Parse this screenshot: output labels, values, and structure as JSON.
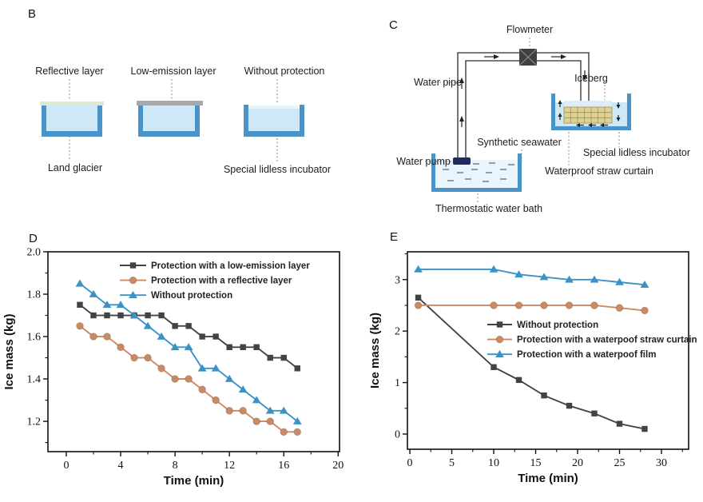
{
  "figure": {
    "background": "#ffffff",
    "colors": {
      "tub_border": "#4a93c8",
      "tub_water": "#cfe8f7",
      "water_surface": "#e7f4fb",
      "bath_water": "#e9f4fc",
      "reflective_strip": "#dfe9ce",
      "low_emission_strip": "#a9a9a9",
      "iceberg_strip": "#dcedf8",
      "straw_fill": "#ded196",
      "straw_line": "#a29253",
      "pump": "#1f2a60",
      "pipe": "#2b2b2b",
      "flowmeter_body": "#3f3f3f",
      "flowmeter_cross": "#8a8a8a",
      "series_gray": "#434343",
      "series_orange": "#c98a64",
      "series_blue": "#3a93c4"
    },
    "panel_b": {
      "letter": "B",
      "labels": {
        "reflective_layer": "Reflective layer",
        "low_emission_layer": "Low-emission layer",
        "without_protection": "Without protection",
        "land_glacier": "Land glacier",
        "special_lidless_incubator": "Special lidless incubator"
      }
    },
    "panel_c": {
      "letter": "C",
      "labels": {
        "flowmeter": "Flowmeter",
        "water_pipe": "Water pipe",
        "iceberg": "Iceberg",
        "water_pump": "Water pump",
        "synthetic_seawater": "Synthetic seawater",
        "special_lidless_incubator": "Special lidless incubator",
        "waterproof_straw_curtain": "Waterproof straw curtain",
        "thermostatic_water_bath": "Thermostatic water bath"
      }
    }
  },
  "chart_data": [
    {
      "type": "line",
      "panel_letter": "D",
      "title": "",
      "xlabel": "Time (min)",
      "ylabel": "Ice mass (kg)",
      "x": [
        1,
        2,
        3,
        4,
        5,
        6,
        7,
        8,
        9,
        10,
        11,
        12,
        13,
        14,
        15,
        16,
        17
      ],
      "series": [
        {
          "name": "Protection with a low-emission layer",
          "marker": "square",
          "color": "#434343",
          "values": [
            1.75,
            1.7,
            1.7,
            1.7,
            1.7,
            1.7,
            1.7,
            1.65,
            1.65,
            1.6,
            1.6,
            1.55,
            1.55,
            1.55,
            1.5,
            1.5,
            1.45
          ]
        },
        {
          "name": "Protection with a reflective layer",
          "marker": "circle",
          "color": "#c98a64",
          "values": [
            1.65,
            1.6,
            1.6,
            1.55,
            1.5,
            1.5,
            1.45,
            1.4,
            1.4,
            1.35,
            1.3,
            1.25,
            1.25,
            1.2,
            1.2,
            1.15,
            1.15
          ]
        },
        {
          "name": "Without protection",
          "marker": "triangle",
          "color": "#3a93c4",
          "values": [
            1.85,
            1.8,
            1.75,
            1.75,
            1.7,
            1.65,
            1.6,
            1.55,
            1.55,
            1.45,
            1.45,
            1.4,
            1.35,
            1.3,
            1.25,
            1.25,
            1.2
          ]
        }
      ],
      "xlim": [
        -1.35,
        20.1
      ],
      "ylim": [
        1.057,
        2.0
      ],
      "xticks": [
        0,
        4,
        8,
        12,
        16,
        20
      ],
      "xtick_labels": [
        "0",
        "4",
        "8",
        "12",
        "16",
        "20"
      ],
      "yticks": [
        1.2,
        1.4,
        1.6,
        1.8,
        2.0
      ],
      "ytick_labels": [
        "1.2",
        "1.4",
        "1.6",
        "1.8",
        "2.0"
      ],
      "grid": false,
      "legend_position": "upper center inside"
    },
    {
      "type": "line",
      "panel_letter": "E",
      "title": "",
      "xlabel": "Time (min)",
      "ylabel": "Ice mass (kg)",
      "x": [
        1,
        10,
        13,
        16,
        19,
        22,
        25,
        28
      ],
      "series": [
        {
          "name": "Without protection",
          "marker": "square",
          "color": "#434343",
          "values": [
            2.65,
            1.3,
            1.05,
            0.75,
            0.55,
            0.4,
            0.2,
            0.1
          ]
        },
        {
          "name": "Protection with a waterpoof straw curtain",
          "marker": "circle",
          "color": "#c98a64",
          "values": [
            2.5,
            2.5,
            2.5,
            2.5,
            2.5,
            2.5,
            2.45,
            2.4
          ]
        },
        {
          "name": "Protection with a waterpoof film",
          "marker": "triangle",
          "color": "#3a93c4",
          "values": [
            3.2,
            3.2,
            3.1,
            3.05,
            3.0,
            3.0,
            2.95,
            2.9
          ]
        }
      ],
      "xlim": [
        -0.29,
        33.24
      ],
      "ylim": [
        -0.295,
        3.54
      ],
      "xticks": [
        0,
        5,
        10,
        15,
        20,
        25,
        30
      ],
      "xtick_labels": [
        "0",
        "5",
        "10",
        "15",
        "20",
        "25",
        "30"
      ],
      "yticks": [
        0,
        1,
        2,
        3
      ],
      "ytick_labels": [
        "0",
        "1",
        "2",
        "3"
      ],
      "grid": false,
      "legend_position": "middle center inside"
    }
  ]
}
